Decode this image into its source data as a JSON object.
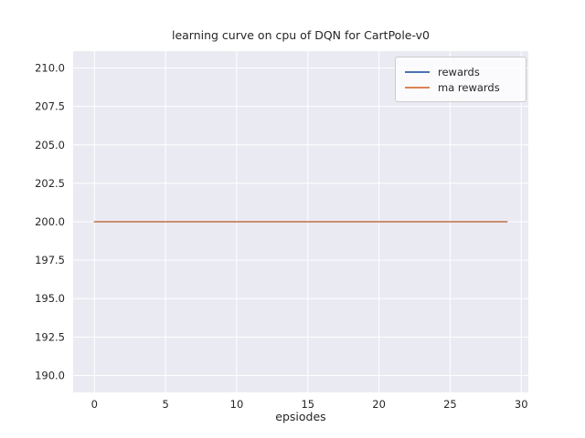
{
  "chart_data": {
    "type": "line",
    "title": "learning curve on cpu of DQN for CartPole-v0",
    "xlabel": "epsiodes",
    "ylabel": "",
    "grid": true,
    "legend_position": "upper right",
    "plot_bg_color": "#eaeaf2",
    "grid_color": "#ffffff",
    "text_color": "#262626",
    "xlim": [
      -1.5,
      30.5
    ],
    "ylim": [
      188.9,
      211.1
    ],
    "xticks": {
      "values": [
        0,
        5,
        10,
        15,
        20,
        25,
        30
      ],
      "labels": [
        "0",
        "5",
        "10",
        "15",
        "20",
        "25",
        "30"
      ]
    },
    "yticks": {
      "values": [
        190.0,
        192.5,
        195.0,
        197.5,
        200.0,
        202.5,
        205.0,
        207.5,
        210.0
      ],
      "labels": [
        "190.0",
        "192.5",
        "195.0",
        "197.5",
        "200.0",
        "202.5",
        "205.0",
        "207.5",
        "210.0"
      ]
    },
    "x": [
      0,
      1,
      2,
      3,
      4,
      5,
      6,
      7,
      8,
      9,
      10,
      11,
      12,
      13,
      14,
      15,
      16,
      17,
      18,
      19,
      20,
      21,
      22,
      23,
      24,
      25,
      26,
      27,
      28,
      29
    ],
    "series": [
      {
        "name": "rewards",
        "color": "#4c72b0",
        "values": [
          200,
          200,
          200,
          200,
          200,
          200,
          200,
          200,
          200,
          200,
          200,
          200,
          200,
          200,
          200,
          200,
          200,
          200,
          200,
          200,
          200,
          200,
          200,
          200,
          200,
          200,
          200,
          200,
          200,
          200
        ]
      },
      {
        "name": "ma rewards",
        "color": "#dd8452",
        "values": [
          200,
          200,
          200,
          200,
          200,
          200,
          200,
          200,
          200,
          200,
          200,
          200,
          200,
          200,
          200,
          200,
          200,
          200,
          200,
          200,
          200,
          200,
          200,
          200,
          200,
          200,
          200,
          200,
          200,
          200
        ]
      }
    ]
  }
}
